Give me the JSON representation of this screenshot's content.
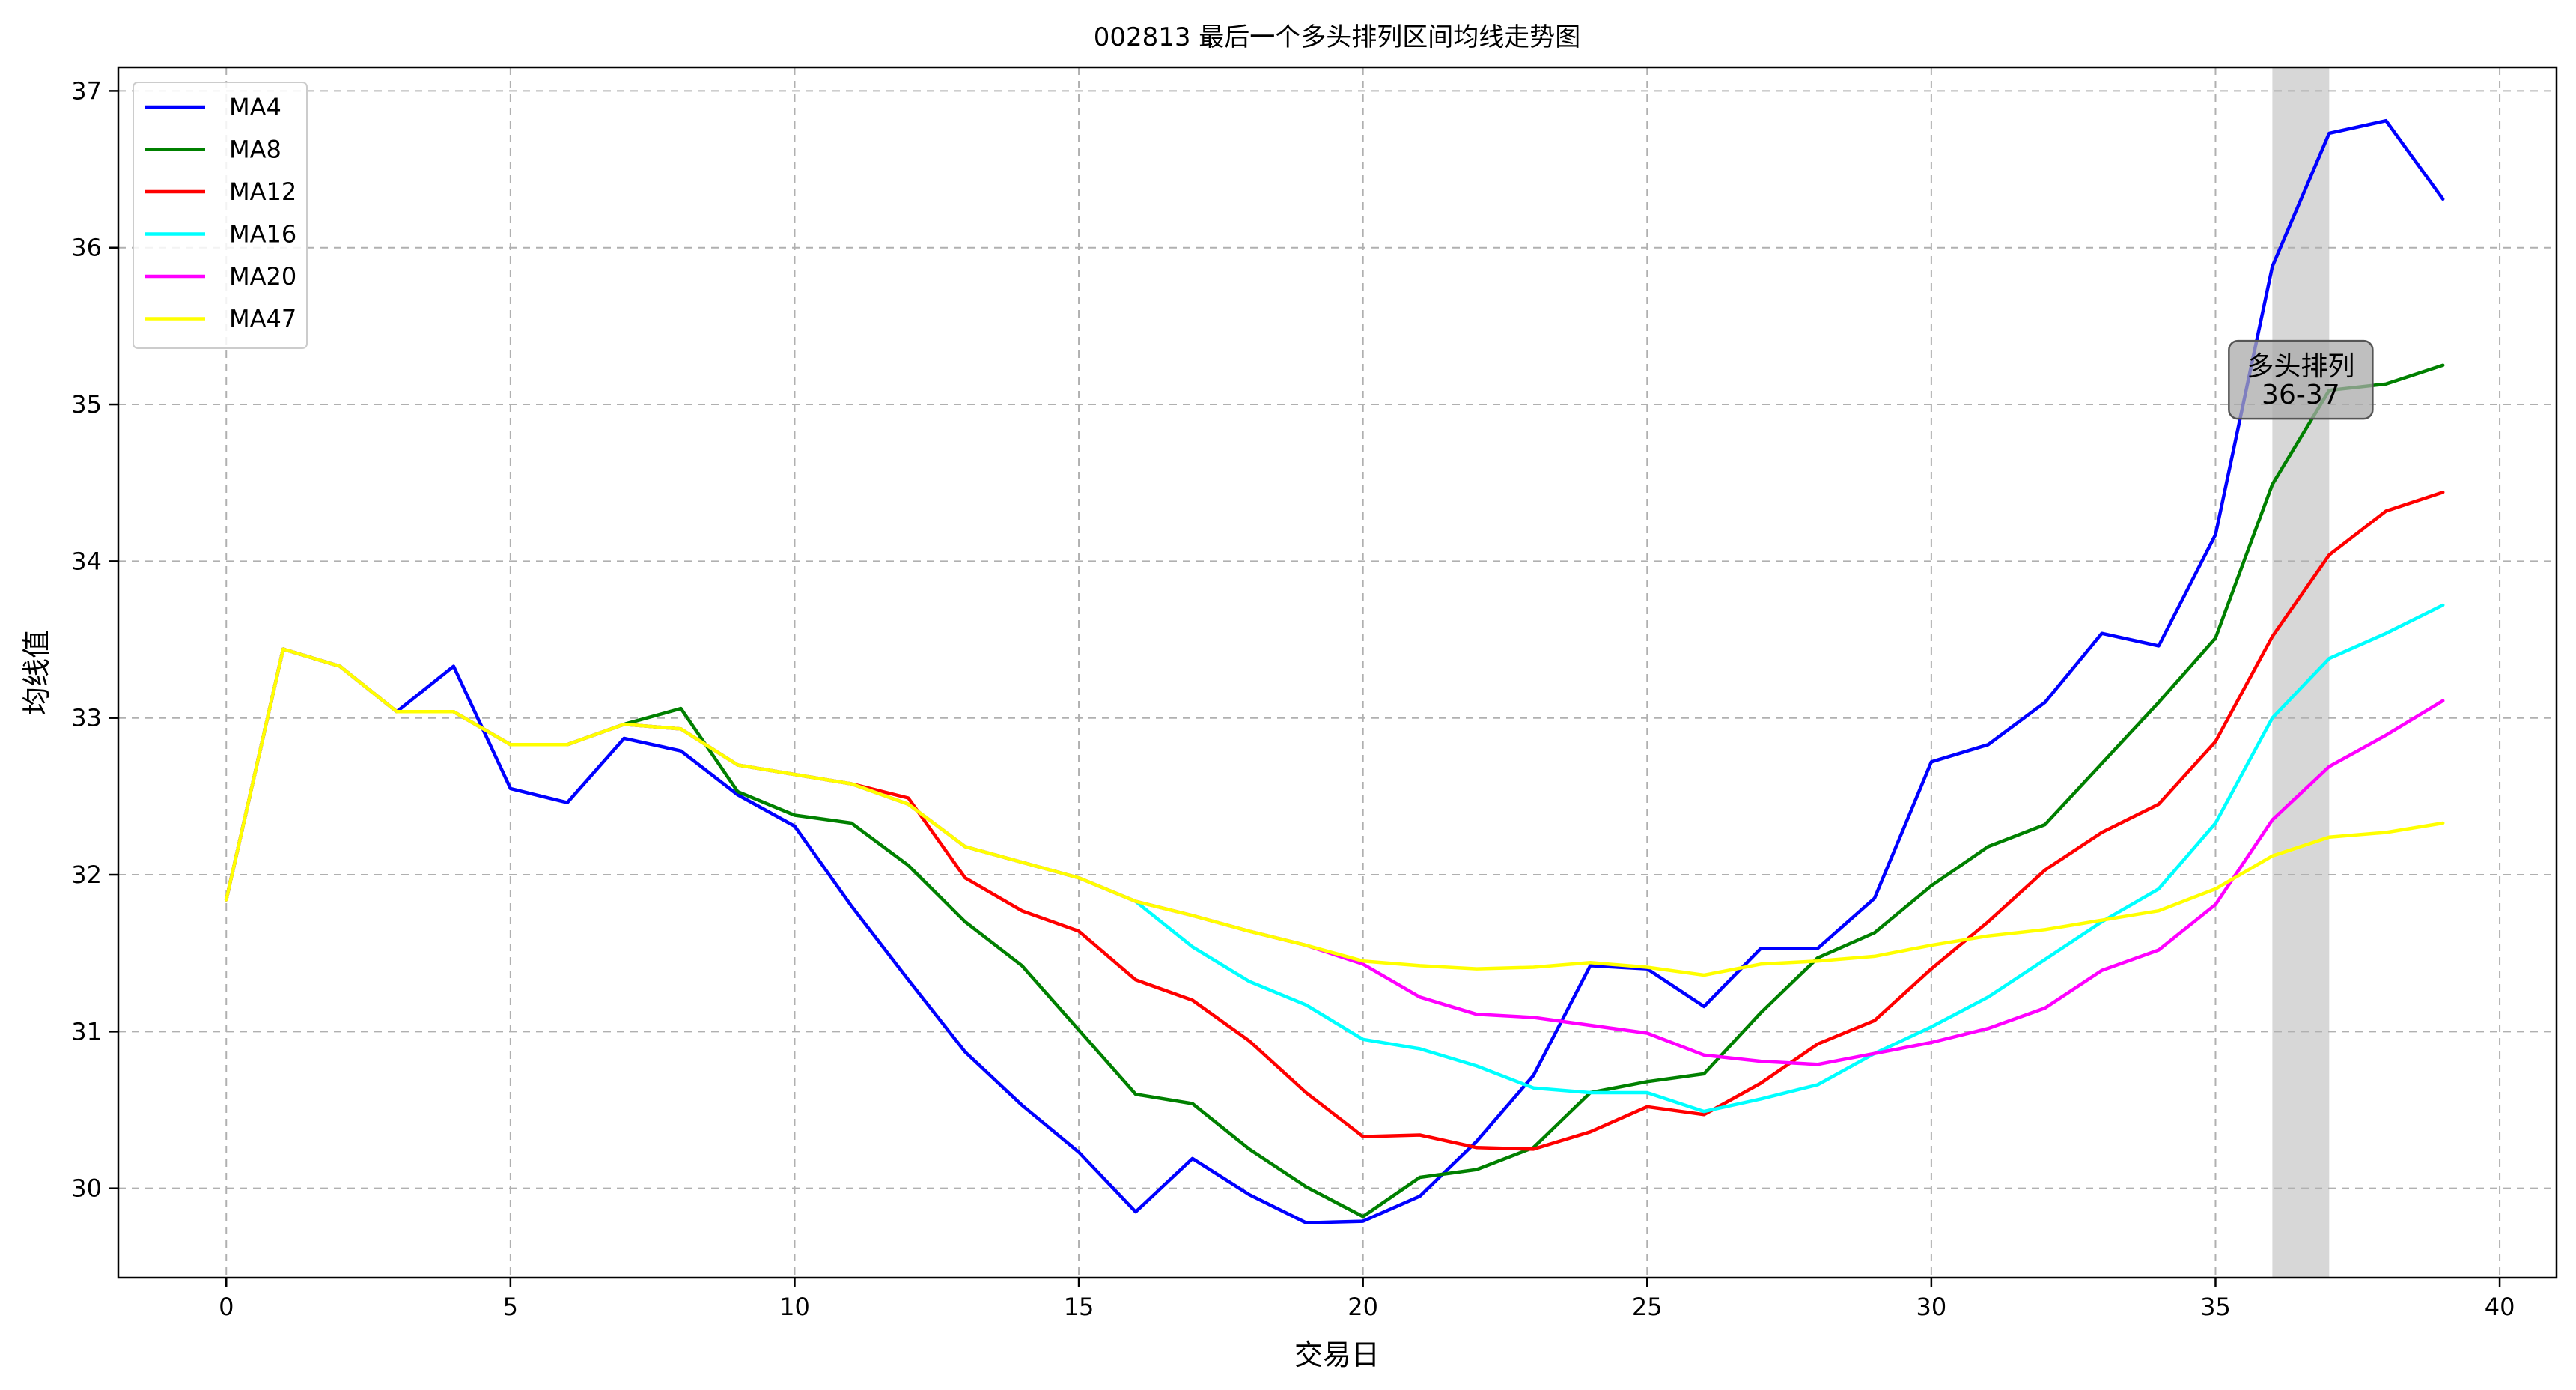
{
  "chart_data": {
    "type": "line",
    "title": "002813 最后一个多头排列区间均线走势图",
    "xlabel": "交易日",
    "ylabel": "均线值",
    "xlim": [
      -1.9,
      41.0
    ],
    "ylim": [
      29.43,
      37.15
    ],
    "xticks": [
      0,
      5,
      10,
      15,
      20,
      25,
      30,
      35,
      40
    ],
    "yticks": [
      30,
      31,
      32,
      33,
      34,
      35,
      36,
      37
    ],
    "grid": true,
    "legend_position": "top-left",
    "x": [
      0,
      1,
      2,
      3,
      4,
      5,
      6,
      7,
      8,
      9,
      10,
      11,
      12,
      13,
      14,
      15,
      16,
      17,
      18,
      19,
      20,
      21,
      22,
      23,
      24,
      25,
      26,
      27,
      28,
      29,
      30,
      31,
      32,
      33,
      34,
      35,
      36,
      37,
      38,
      39
    ],
    "series": [
      {
        "name": "MA4",
        "color": "#0000ff",
        "values": [
          31.84,
          33.44,
          33.33,
          33.04,
          33.33,
          32.55,
          32.46,
          32.87,
          32.79,
          32.51,
          32.31,
          31.8,
          31.33,
          30.87,
          30.53,
          30.23,
          29.85,
          30.19,
          29.96,
          29.78,
          29.79,
          29.95,
          30.3,
          30.72,
          31.42,
          31.4,
          31.16,
          31.53,
          31.53,
          31.85,
          32.72,
          32.83,
          33.1,
          33.54,
          33.46,
          34.17,
          35.88,
          36.73,
          36.81,
          36.31
        ]
      },
      {
        "name": "MA8",
        "color": "#008000",
        "values": [
          31.84,
          33.44,
          33.33,
          33.04,
          33.04,
          32.83,
          32.83,
          32.96,
          33.06,
          32.53,
          32.38,
          32.33,
          32.06,
          31.7,
          31.42,
          31.01,
          30.6,
          30.54,
          30.25,
          30.01,
          29.82,
          30.07,
          30.12,
          30.26,
          30.61,
          30.68,
          30.73,
          31.12,
          31.47,
          31.63,
          31.93,
          32.18,
          32.32,
          32.71,
          33.1,
          33.51,
          34.49,
          35.09,
          35.13,
          35.25
        ]
      },
      {
        "name": "MA12",
        "color": "#ff0000",
        "values": [
          31.84,
          33.44,
          33.33,
          33.04,
          33.04,
          32.83,
          32.83,
          32.96,
          32.93,
          32.7,
          32.64,
          32.58,
          32.49,
          31.98,
          31.77,
          31.64,
          31.33,
          31.2,
          30.94,
          30.61,
          30.33,
          30.34,
          30.26,
          30.25,
          30.36,
          30.52,
          30.47,
          30.67,
          30.92,
          31.07,
          31.4,
          31.7,
          32.03,
          32.27,
          32.45,
          32.85,
          33.52,
          34.04,
          34.32,
          34.44
        ]
      },
      {
        "name": "MA16",
        "color": "#00ffff",
        "values": [
          31.84,
          33.44,
          33.33,
          33.04,
          33.04,
          32.83,
          32.83,
          32.96,
          32.93,
          32.7,
          32.64,
          32.58,
          32.45,
          32.18,
          32.08,
          31.98,
          31.83,
          31.54,
          31.32,
          31.17,
          30.95,
          30.89,
          30.78,
          30.64,
          30.61,
          30.61,
          30.49,
          30.57,
          30.66,
          30.86,
          31.03,
          31.22,
          31.46,
          31.7,
          31.91,
          32.33,
          33.0,
          33.38,
          33.54,
          33.72
        ]
      },
      {
        "name": "MA20",
        "color": "#ff00ff",
        "values": [
          31.84,
          33.44,
          33.33,
          33.04,
          33.04,
          32.83,
          32.83,
          32.96,
          32.93,
          32.7,
          32.64,
          32.58,
          32.45,
          32.18,
          32.08,
          31.98,
          31.83,
          31.74,
          31.64,
          31.55,
          31.43,
          31.22,
          31.11,
          31.09,
          31.04,
          30.99,
          30.85,
          30.81,
          30.79,
          30.86,
          30.93,
          31.02,
          31.15,
          31.39,
          31.52,
          31.81,
          32.35,
          32.69,
          32.89,
          33.11
        ]
      },
      {
        "name": "MA47",
        "color": "#ffff00",
        "values": [
          31.84,
          33.44,
          33.33,
          33.04,
          33.04,
          32.83,
          32.83,
          32.96,
          32.93,
          32.7,
          32.64,
          32.58,
          32.45,
          32.18,
          32.08,
          31.98,
          31.83,
          31.74,
          31.64,
          31.55,
          31.45,
          31.42,
          31.4,
          31.41,
          31.44,
          31.41,
          31.36,
          31.43,
          31.45,
          31.48,
          31.55,
          31.61,
          31.65,
          31.71,
          31.77,
          31.91,
          32.12,
          32.24,
          32.27,
          32.33
        ]
      }
    ],
    "highlight_region": {
      "x_start": 36,
      "x_end": 37,
      "color": "#d3d3d3"
    },
    "annotation": {
      "lines": [
        "多头排列",
        "36-37"
      ],
      "x": 36.5,
      "y": 35.1
    }
  }
}
